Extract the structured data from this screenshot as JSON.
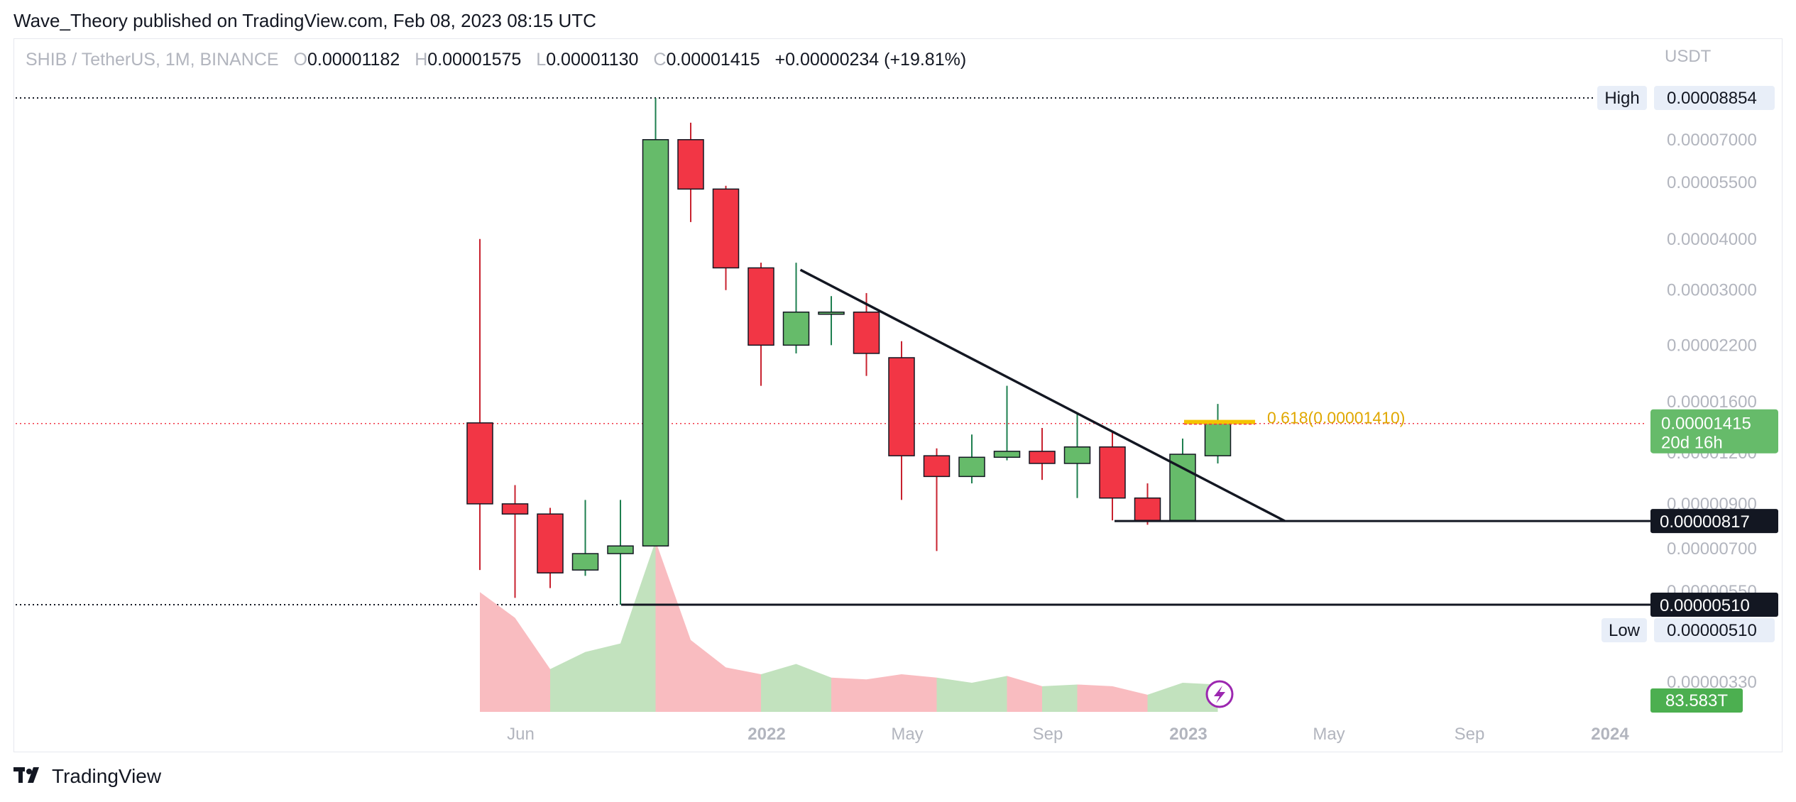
{
  "header": {
    "published_text": "Wave_Theory published on TradingView.com, Feb 08, 2023 08:15 UTC"
  },
  "legend": {
    "symbol": "SHIB / TetherUS, 1M, BINANCE",
    "open_key": "O",
    "open": "0.00001182",
    "high_key": "H",
    "high": "0.00001575",
    "low_key": "L",
    "low": "0.00001130",
    "close_key": "C",
    "close": "0.00001415",
    "change": "+0.00000234 (+19.81%)"
  },
  "axis": {
    "unit": "USDT"
  },
  "footer": {
    "brand": "TradingView"
  },
  "colors": {
    "up": "#66bb6a",
    "down": "#f23645",
    "up_volume": "#c2e2be",
    "down_volume": "#f9bcc0",
    "fib": "#f5c400",
    "grid_text": "#b2b5be",
    "label_bg": "#e8eef8"
  },
  "chart_data": {
    "type": "candlestick",
    "timeframe": "1M",
    "y_scale": "log",
    "x_tick_labels": [
      "Jun",
      "2022",
      "May",
      "Sep",
      "2023",
      "May",
      "Sep",
      "2024"
    ],
    "x_tick_dates": [
      "2021-06",
      "2022-01",
      "2022-05",
      "2022-09",
      "2023-01",
      "2023-05",
      "2023-09",
      "2024-01"
    ],
    "y_tick_labels": [
      "0.00007000",
      "0.00005500",
      "0.00004000",
      "0.00003000",
      "0.00002200",
      "0.00001600",
      "0.00001200",
      "0.00000900",
      "0.00000700",
      "0.00000550",
      "0.00000330"
    ],
    "candles": [
      {
        "date": "2021-05",
        "open": 1.42e-05,
        "high": 4e-05,
        "low": 6.2e-06,
        "close": 9e-06
      },
      {
        "date": "2021-06",
        "open": 9e-06,
        "high": 1e-05,
        "low": 5.3e-06,
        "close": 8.5e-06
      },
      {
        "date": "2021-07",
        "open": 8.5e-06,
        "high": 8.8e-06,
        "low": 5.6e-06,
        "close": 6.1e-06
      },
      {
        "date": "2021-08",
        "open": 6.2e-06,
        "high": 9.2e-06,
        "low": 6e-06,
        "close": 6.8e-06
      },
      {
        "date": "2021-09",
        "open": 6.8e-06,
        "high": 9.2e-06,
        "low": 5.1e-06,
        "close": 7.1e-06
      },
      {
        "date": "2021-10",
        "open": 7.1e-06,
        "high": 8.85e-05,
        "low": 7.1e-06,
        "close": 7e-05
      },
      {
        "date": "2021-11",
        "open": 7e-05,
        "high": 7.7e-05,
        "low": 4.4e-05,
        "close": 5.3e-05
      },
      {
        "date": "2021-12",
        "open": 5.3e-05,
        "high": 5.4e-05,
        "low": 3e-05,
        "close": 3.4e-05
      },
      {
        "date": "2022-01",
        "open": 3.4e-05,
        "high": 3.5e-05,
        "low": 1.75e-05,
        "close": 2.2e-05
      },
      {
        "date": "2022-02",
        "open": 2.2e-05,
        "high": 3.5e-05,
        "low": 2.1e-05,
        "close": 2.65e-05
      },
      {
        "date": "2022-03",
        "open": 2.65e-05,
        "high": 2.9e-05,
        "low": 2.2e-05,
        "close": 2.65e-05
      },
      {
        "date": "2022-04",
        "open": 2.65e-05,
        "high": 2.95e-05,
        "low": 1.85e-05,
        "close": 2.1e-05
      },
      {
        "date": "2022-05",
        "open": 2.05e-05,
        "high": 2.25e-05,
        "low": 9.2e-06,
        "close": 1.18e-05
      },
      {
        "date": "2022-06",
        "open": 1.18e-05,
        "high": 1.23e-05,
        "low": 6.9e-06,
        "close": 1.05e-05
      },
      {
        "date": "2022-07",
        "open": 1.05e-05,
        "high": 1.33e-05,
        "low": 1.01e-05,
        "close": 1.17e-05
      },
      {
        "date": "2022-08",
        "open": 1.17e-05,
        "high": 1.75e-05,
        "low": 1.15e-05,
        "close": 1.21e-05
      },
      {
        "date": "2022-09",
        "open": 1.21e-05,
        "high": 1.38e-05,
        "low": 1.03e-05,
        "close": 1.13e-05
      },
      {
        "date": "2022-10",
        "open": 1.13e-05,
        "high": 1.5e-05,
        "low": 9.3e-06,
        "close": 1.24e-05
      },
      {
        "date": "2022-11",
        "open": 1.24e-05,
        "high": 1.36e-05,
        "low": 8.2e-06,
        "close": 9.3e-06
      },
      {
        "date": "2022-12",
        "open": 9.3e-06,
        "high": 1.01e-05,
        "low": 8e-06,
        "close": 8.2e-06
      },
      {
        "date": "2023-01",
        "open": 8.2e-06,
        "high": 1.3e-05,
        "low": 8.2e-06,
        "close": 1.19e-05
      },
      {
        "date": "2023-02",
        "open": 1.18e-05,
        "high": 1.58e-05,
        "low": 1.13e-05,
        "close": 1.42e-05
      }
    ],
    "volume_legend": "83.583T",
    "volume": [
      70,
      55,
      25,
      35,
      40,
      100,
      42,
      26,
      22,
      28,
      20,
      19,
      22,
      20,
      17,
      21,
      15,
      16,
      15,
      10,
      17,
      16
    ],
    "annotations": {
      "high_label": "High",
      "high_value": "0.00008854",
      "low_label": "Low",
      "low_value": "0.00000510",
      "current_price": "0.00001415",
      "countdown": "20d 16h",
      "support_1": "0.00000817",
      "support_2": "0.00000510",
      "fib_label": "0.618(0.00001410)",
      "trendline": {
        "from": {
          "date": "2022-02",
          "price": 3.5e-05
        },
        "to": {
          "date": "2023-03",
          "price": 8.17e-06
        }
      }
    }
  }
}
